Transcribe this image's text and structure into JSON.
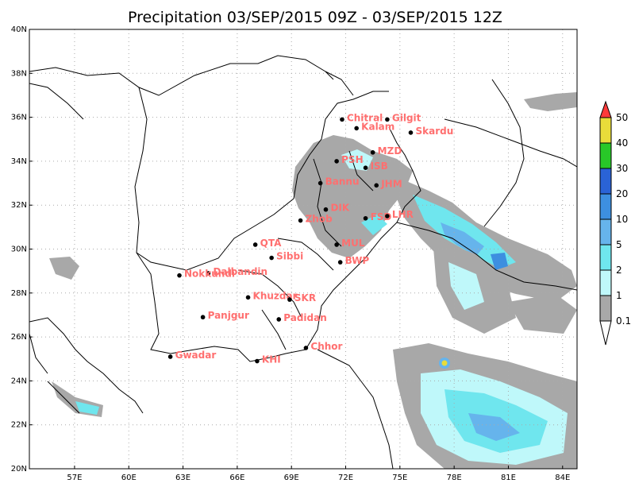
{
  "map": {
    "title": "Precipitation 03/SEP/2015 09Z - 03/SEP/2015 12Z",
    "lon_labels": [
      "57E",
      "60E",
      "63E",
      "66E",
      "69E",
      "72E",
      "75E",
      "78E",
      "81E",
      "84E"
    ],
    "lat_labels": [
      "40N",
      "38N",
      "36N",
      "34N",
      "32N",
      "30N",
      "28N",
      "26N",
      "24N",
      "22N",
      "20N"
    ],
    "lon_range": [
      54.5,
      84.8
    ],
    "lat_range": [
      20,
      40
    ],
    "lon_ticks": [
      57,
      60,
      63,
      66,
      69,
      72,
      75,
      78,
      81,
      84
    ],
    "lat_ticks": [
      40,
      38,
      36,
      34,
      32,
      30,
      28,
      26,
      24,
      22,
      20
    ],
    "grid": "dotted",
    "colors": {
      "boundary": "#000000",
      "station_label": "#ff6f6f",
      "grid": "#aaaaaa"
    }
  },
  "stations": [
    {
      "label": "Gilgit",
      "lon": 74.3,
      "lat": 35.9
    },
    {
      "label": "Chitral",
      "lon": 71.8,
      "lat": 35.9
    },
    {
      "label": "Kalam",
      "lon": 72.6,
      "lat": 35.5
    },
    {
      "label": "Skardu",
      "lon": 75.6,
      "lat": 35.3
    },
    {
      "label": "MZD",
      "lon": 73.5,
      "lat": 34.4
    },
    {
      "label": "PSH",
      "lon": 71.5,
      "lat": 34.0
    },
    {
      "label": "ISB",
      "lon": 73.1,
      "lat": 33.7
    },
    {
      "label": "Bannu",
      "lon": 70.6,
      "lat": 33.0
    },
    {
      "label": "JHM",
      "lon": 73.7,
      "lat": 32.9
    },
    {
      "label": "DIK",
      "lon": 70.9,
      "lat": 31.8
    },
    {
      "label": "Zhob",
      "lon": 69.5,
      "lat": 31.3
    },
    {
      "label": "FSD",
      "lon": 73.1,
      "lat": 31.4
    },
    {
      "label": "LHR",
      "lon": 74.3,
      "lat": 31.5
    },
    {
      "label": "MUL",
      "lon": 71.5,
      "lat": 30.2
    },
    {
      "label": "QTA",
      "lon": 67.0,
      "lat": 30.2
    },
    {
      "label": "Sibbi",
      "lon": 67.9,
      "lat": 29.6
    },
    {
      "label": "BWP",
      "lon": 71.7,
      "lat": 29.4
    },
    {
      "label": "Dalbandin",
      "lon": 64.4,
      "lat": 28.9
    },
    {
      "label": "Nokkundi",
      "lon": 62.8,
      "lat": 28.8
    },
    {
      "label": "Khuzdar",
      "lon": 66.6,
      "lat": 27.8
    },
    {
      "label": "SKR",
      "lon": 68.9,
      "lat": 27.7
    },
    {
      "label": "Panjgur",
      "lon": 64.1,
      "lat": 26.9
    },
    {
      "label": "Padidan",
      "lon": 68.3,
      "lat": 26.8
    },
    {
      "label": "Chhor",
      "lon": 69.8,
      "lat": 25.5
    },
    {
      "label": "Gwadar",
      "lon": 62.3,
      "lat": 25.1
    },
    {
      "label": "KHI",
      "lon": 67.1,
      "lat": 24.9
    }
  ],
  "legend": {
    "labels": [
      "50",
      "40",
      "30",
      "20",
      "10",
      "5",
      "2",
      "1",
      "0.1"
    ],
    "colors": [
      "#ff3a3a",
      "#e8dc3a",
      "#28c828",
      "#2a63d6",
      "#3d8fe0",
      "#66b4ec",
      "#6fe6ee",
      "#bff8fa",
      "#a8a8a8"
    ]
  }
}
